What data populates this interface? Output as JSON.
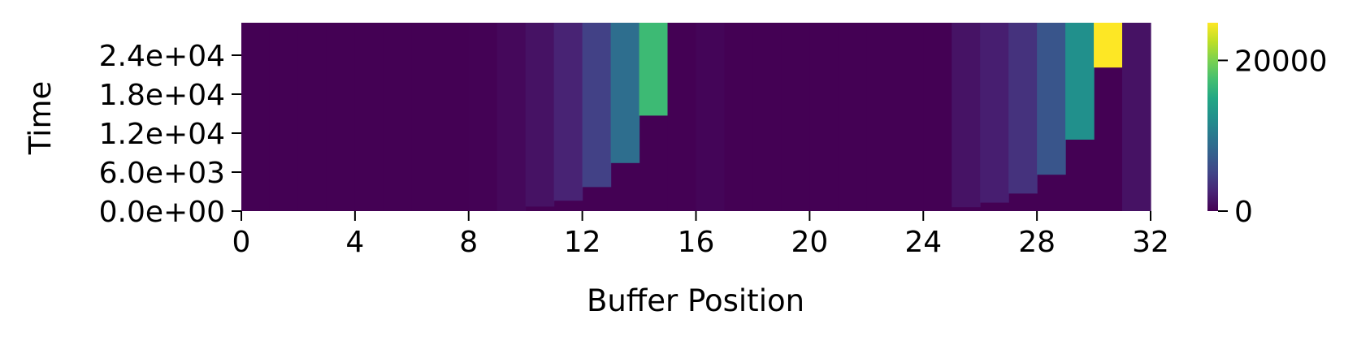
{
  "chart_data": {
    "type": "heatmap",
    "title": "",
    "xlabel": "Buffer Position",
    "ylabel": "Time",
    "xlim": [
      0,
      32
    ],
    "ylim": [
      0,
      29000
    ],
    "x_ticks": [
      0,
      4,
      8,
      12,
      16,
      20,
      24,
      28,
      32
    ],
    "y_tick_values": [
      0,
      6000,
      12000,
      18000,
      24000
    ],
    "y_tick_labels": [
      "0.0e+00",
      "6.0e+03",
      "1.2e+04",
      "1.8e+04",
      "2.4e+04"
    ],
    "colormap": "viridis",
    "colorbar": {
      "range": [
        0,
        25000
      ],
      "tick_values": [
        0,
        20000
      ],
      "tick_labels": [
        "0",
        "20000"
      ]
    },
    "note": "columns = buffer positions 0..31; each column shows a flat level until time start, then constant value",
    "columns": [
      {
        "position": 0,
        "start": 0,
        "value": 0
      },
      {
        "position": 1,
        "start": 0,
        "value": 0
      },
      {
        "position": 2,
        "start": 0,
        "value": 0
      },
      {
        "position": 3,
        "start": 0,
        "value": 0
      },
      {
        "position": 4,
        "start": 0,
        "value": 0
      },
      {
        "position": 5,
        "start": 0,
        "value": 0
      },
      {
        "position": 6,
        "start": 0,
        "value": 0
      },
      {
        "position": 7,
        "start": 0,
        "value": 0
      },
      {
        "position": 8,
        "start": 0,
        "value": 50
      },
      {
        "position": 9,
        "start": 0,
        "value": 500
      },
      {
        "position": 10,
        "start": 700,
        "value": 1200
      },
      {
        "position": 11,
        "start": 1600,
        "value": 2400
      },
      {
        "position": 12,
        "start": 3700,
        "value": 4800
      },
      {
        "position": 13,
        "start": 7400,
        "value": 9000
      },
      {
        "position": 14,
        "start": 14700,
        "value": 17000
      },
      {
        "position": 15,
        "start": 0,
        "value": 0
      },
      {
        "position": 16,
        "start": 0,
        "value": 300
      },
      {
        "position": 17,
        "start": 0,
        "value": 0
      },
      {
        "position": 18,
        "start": 0,
        "value": 0
      },
      {
        "position": 19,
        "start": 0,
        "value": 0
      },
      {
        "position": 20,
        "start": 0,
        "value": 0
      },
      {
        "position": 21,
        "start": 0,
        "value": 0
      },
      {
        "position": 22,
        "start": 0,
        "value": 0
      },
      {
        "position": 23,
        "start": 0,
        "value": 0
      },
      {
        "position": 24,
        "start": 0,
        "value": 0
      },
      {
        "position": 25,
        "start": 600,
        "value": 1300
      },
      {
        "position": 26,
        "start": 1300,
        "value": 2100
      },
      {
        "position": 27,
        "start": 2700,
        "value": 3600
      },
      {
        "position": 28,
        "start": 5600,
        "value": 6600
      },
      {
        "position": 29,
        "start": 11000,
        "value": 12400
      },
      {
        "position": 30,
        "start": 22100,
        "value": 25000
      },
      {
        "position": 31,
        "start": 0,
        "value": 1200
      }
    ]
  }
}
